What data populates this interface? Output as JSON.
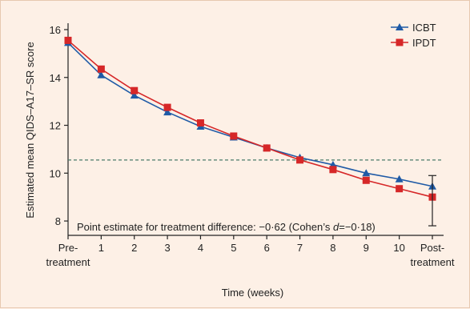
{
  "chart_data": {
    "type": "line",
    "xlabel": "Time (weeks)",
    "ylabel": "Estimated mean QIDS–A17–SR score",
    "x_tick_labels": [
      [
        "Pre-",
        "treatment"
      ],
      [
        "1"
      ],
      [
        "2"
      ],
      [
        "3"
      ],
      [
        "4"
      ],
      [
        "5"
      ],
      [
        "6"
      ],
      [
        "7"
      ],
      [
        "8"
      ],
      [
        "9"
      ],
      [
        "10"
      ],
      [
        "Post-",
        "treatment"
      ]
    ],
    "x": [
      0,
      1,
      2,
      3,
      4,
      5,
      6,
      7,
      8,
      9,
      10,
      11
    ],
    "yticks": [
      8,
      10,
      12,
      14,
      16
    ],
    "ylim": [
      7.4,
      16.2
    ],
    "series": [
      {
        "name": "ICBT",
        "color": "#1f5aa6",
        "marker": "triangle",
        "values": [
          15.45,
          14.1,
          13.25,
          12.55,
          11.95,
          11.5,
          11.05,
          10.65,
          10.35,
          10.0,
          9.75,
          9.45
        ]
      },
      {
        "name": "IPDT",
        "color": "#d62728",
        "marker": "square",
        "values": [
          15.55,
          14.35,
          13.45,
          12.75,
          12.1,
          11.55,
          11.05,
          10.55,
          10.15,
          9.7,
          9.35,
          9.0
        ]
      }
    ],
    "reference_line": {
      "y": 10.55,
      "style": "dashed",
      "color": "#4a7a6a"
    },
    "error_bar": {
      "x": 11,
      "low": 7.8,
      "high": 9.9
    },
    "annotation": {
      "prefix": "Point estimate for treatment difference: −0·62 (Cohen’s ",
      "italic": "d",
      "suffix": "=−0·18)"
    },
    "legend_position": "top-right",
    "grid": false
  }
}
